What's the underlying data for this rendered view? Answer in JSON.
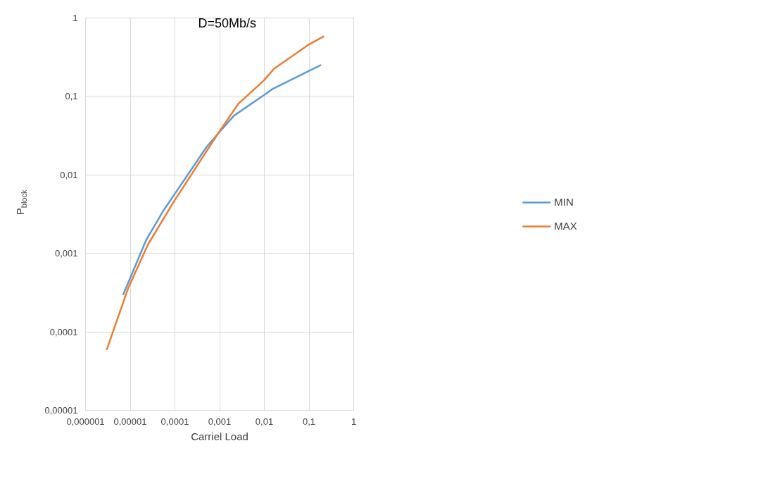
{
  "chart_data": {
    "type": "line",
    "xlabel": "Carriel Load",
    "ylabel": "P$_{block}$",
    "annotations": [
      "D=50Mb/s"
    ],
    "log": "xy",
    "grid": true,
    "legend": "right",
    "marker": "none",
    "line_style": "solid",
    "xlim": [
      1e-06,
      1
    ],
    "ylim": [
      1e-05,
      1
    ],
    "xticks": [
      {
        "value": 1e-06,
        "label": "0,000001"
      },
      {
        "value": 1e-05,
        "label": "0,00001"
      },
      {
        "value": 0.0001,
        "label": "0,0001"
      },
      {
        "value": 0.001,
        "label": "0,001"
      },
      {
        "value": 0.01,
        "label": "0,01"
      },
      {
        "value": 0.1,
        "label": "0,1"
      },
      1
    ],
    "yticks": [
      {
        "value": 1e-05,
        "label": "0,00001"
      },
      {
        "value": 0.0001,
        "label": "0,0001"
      },
      {
        "value": 0.001,
        "label": "0,001"
      },
      {
        "value": 0.01,
        "label": "0,01"
      },
      {
        "value": 0.1,
        "label": "0,1"
      },
      1
    ],
    "series": [
      {
        "name": "MIN",
        "color": "#5b9bd5",
        "x": [
          7e-06,
          2.3e-05,
          5.7e-05,
          0.00052,
          0.0009,
          0.0021,
          0.0098,
          0.0155,
          0.18
        ],
        "values": [
          0.0003,
          0.0015,
          0.0036,
          0.023,
          0.033,
          0.057,
          0.104,
          0.125,
          0.25
        ]
      },
      {
        "name": "MAX",
        "color": "#ed7d31",
        "x": [
          3e-06,
          9e-06,
          2.5e-05,
          9.3e-05,
          0.0009,
          0.0026,
          0.0098,
          0.0166,
          0.1,
          0.21
        ],
        "values": [
          6e-05,
          0.00036,
          0.0013,
          0.0045,
          0.033,
          0.08,
          0.16,
          0.226,
          0.46,
          0.58
        ]
      }
    ]
  }
}
